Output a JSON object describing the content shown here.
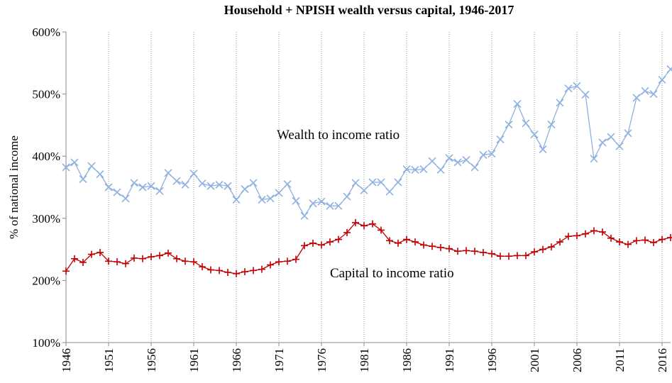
{
  "chart_data": {
    "type": "line",
    "title": "Household + NPISH wealth versus capital, 1946-2017",
    "y_label": "% of national income",
    "annotations": [
      "Wealth to income ratio",
      "Capital to income ratio"
    ],
    "x": [
      1946,
      1947,
      1948,
      1949,
      1950,
      1951,
      1952,
      1953,
      1954,
      1955,
      1956,
      1957,
      1958,
      1959,
      1960,
      1961,
      1962,
      1963,
      1964,
      1965,
      1966,
      1967,
      1968,
      1969,
      1970,
      1971,
      1972,
      1973,
      1974,
      1975,
      1976,
      1977,
      1978,
      1979,
      1980,
      1981,
      1982,
      1983,
      1984,
      1985,
      1986,
      1987,
      1988,
      1989,
      1990,
      1991,
      1992,
      1993,
      1994,
      1995,
      1996,
      1997,
      1998,
      1999,
      2000,
      2001,
      2002,
      2003,
      2004,
      2005,
      2006,
      2007,
      2008,
      2009,
      2010,
      2011,
      2012,
      2013,
      2014,
      2015,
      2016,
      2017
    ],
    "series": [
      {
        "name": "Wealth to income ratio",
        "color": "#8eb1e0",
        "marker": "x",
        "values": [
          382,
          390,
          363,
          384,
          371,
          350,
          342,
          332,
          357,
          350,
          352,
          344,
          373,
          360,
          354,
          372,
          356,
          352,
          354,
          352,
          330,
          347,
          357,
          330,
          332,
          341,
          355,
          328,
          304,
          324,
          327,
          320,
          320,
          335,
          357,
          345,
          358,
          358,
          343,
          358,
          379,
          378,
          379,
          392,
          378,
          397,
          390,
          394,
          382,
          402,
          404,
          427,
          451,
          484,
          453,
          435,
          411,
          451,
          486,
          509,
          513,
          499,
          396,
          422,
          431,
          416,
          437,
          494,
          505,
          500,
          523,
          540
        ]
      },
      {
        "name": "Capital to income ratio",
        "color": "#c00000",
        "marker": "+",
        "values": [
          215,
          235,
          229,
          242,
          245,
          231,
          230,
          227,
          236,
          235,
          238,
          240,
          244,
          235,
          231,
          230,
          222,
          217,
          216,
          213,
          211,
          214,
          216,
          218,
          225,
          230,
          231,
          234,
          256,
          260,
          257,
          262,
          266,
          277,
          293,
          288,
          291,
          281,
          264,
          260,
          266,
          262,
          257,
          255,
          253,
          251,
          247,
          248,
          247,
          245,
          243,
          239,
          239,
          240,
          240,
          246,
          250,
          254,
          262,
          271,
          272,
          275,
          280,
          278,
          268,
          262,
          258,
          264,
          265,
          261,
          266,
          269
        ]
      }
    ],
    "xlim": [
      1946,
      2017
    ],
    "xticks": [
      1946,
      1951,
      1956,
      1961,
      1966,
      1971,
      1976,
      1981,
      1986,
      1991,
      1996,
      2001,
      2006,
      2011,
      2016
    ],
    "ylim": [
      100,
      600
    ],
    "yticks": [
      {
        "value": 100,
        "label": "100%"
      },
      {
        "value": 200,
        "label": "200%"
      },
      {
        "value": 300,
        "label": "300%"
      },
      {
        "value": 400,
        "label": "400%"
      },
      {
        "value": 500,
        "label": "500%"
      },
      {
        "value": 600,
        "label": "600%"
      }
    ],
    "grid": true
  }
}
